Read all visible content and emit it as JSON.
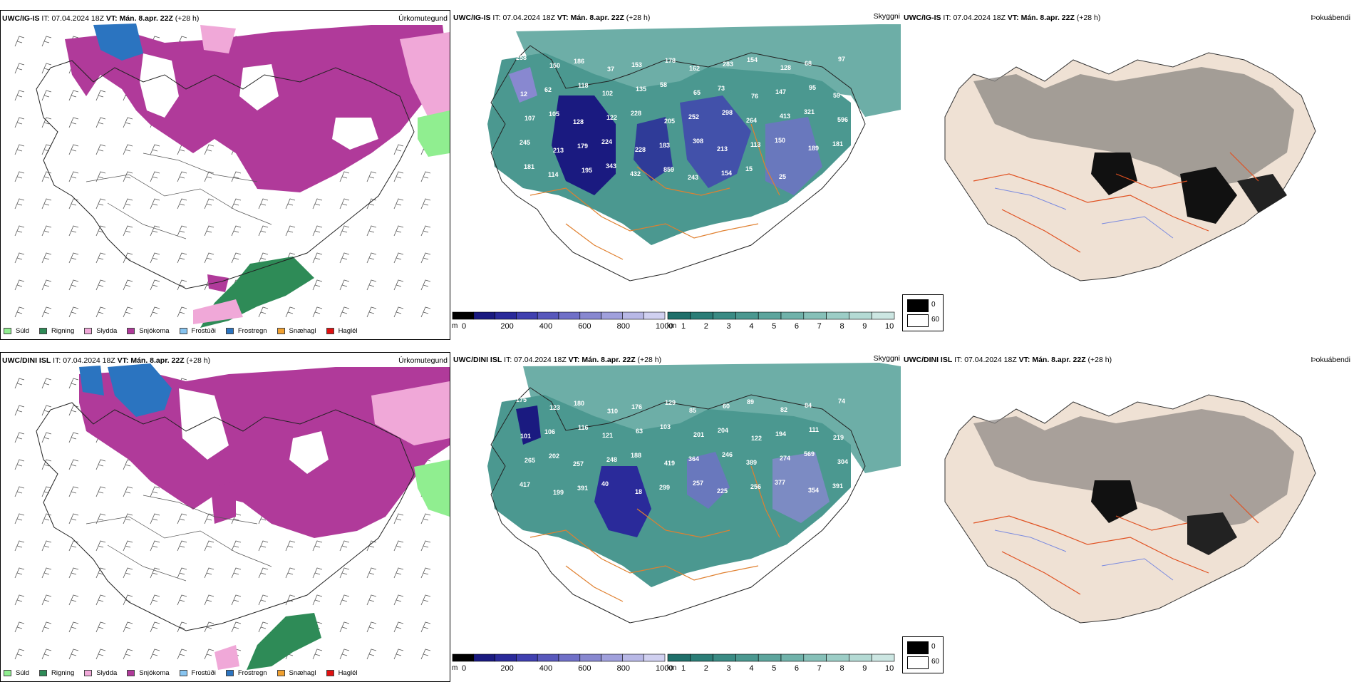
{
  "rows": [
    {
      "model": "UWC/IG-IS",
      "it_label": "IT:",
      "it_value": "07.04.2024 18Z",
      "vt_label": "VT:",
      "vt_value": "Mán. 8.apr. 22Z",
      "lead": "(+28 h)"
    },
    {
      "model": "UWC/DINI ISL",
      "it_label": "IT:",
      "it_value": "07.04.2024 18Z",
      "vt_label": "VT:",
      "vt_value": "Mán. 8.apr. 22Z",
      "lead": "(+28 h)"
    }
  ],
  "panel_titles": {
    "precip_type": "Úrkomutegund",
    "cloud_base": "Skyggni",
    "fog": "Þokuábendi"
  },
  "precip_legend": [
    {
      "label": "Súld",
      "color": "#90ee90"
    },
    {
      "label": "Rigning",
      "color": "#2e8b57"
    },
    {
      "label": "Slydda",
      "color": "#f0a8d8"
    },
    {
      "label": "Snjókoma",
      "color": "#b03a9a"
    },
    {
      "label": "Frostúði",
      "color": "#87c4f0"
    },
    {
      "label": "Frostregn",
      "color": "#2b74c0"
    },
    {
      "label": "Snæhagl",
      "color": "#f0a030"
    },
    {
      "label": "Haglél",
      "color": "#e01010"
    }
  ],
  "cloud_colorbar": {
    "unit": "m",
    "ticks": [
      "0",
      "200",
      "400",
      "600",
      "800",
      "1000"
    ],
    "colors": [
      "#000000",
      "#1a1a80",
      "#2a2a9a",
      "#4040b0",
      "#5858bc",
      "#7070c8",
      "#8888d0",
      "#a0a0dc",
      "#b8b8e6",
      "#d0d0f0"
    ]
  },
  "vis_colorbar": {
    "unit": "km",
    "ticks": [
      "1",
      "2",
      "3",
      "4",
      "5",
      "6",
      "7",
      "8",
      "9",
      "10"
    ],
    "colors": [
      "#1f6f6a",
      "#2b7d77",
      "#3a8b84",
      "#4b9890",
      "#5da59d",
      "#70b2aa",
      "#86c0b8",
      "#9ccdc6",
      "#b4dad4",
      "#cce6e2"
    ]
  },
  "fog_legend": {
    "values": [
      "0",
      "60"
    ],
    "colors": [
      "#000000",
      "#ffffff"
    ]
  },
  "cloud_labels_top": [
    "258",
    "150",
    "186",
    "37",
    "153",
    "178",
    "162",
    "283",
    "154",
    "128",
    "68",
    "97",
    "12",
    "62",
    "118",
    "102",
    "135",
    "58",
    "65",
    "73",
    "76",
    "147",
    "95",
    "59",
    "107",
    "105",
    "128",
    "122",
    "228",
    "205",
    "252",
    "298",
    "264",
    "413",
    "321",
    "596",
    "245",
    "213",
    "179",
    "224",
    "228",
    "183",
    "308",
    "213",
    "113",
    "150",
    "189",
    "181",
    "181",
    "114",
    "195",
    "343",
    "432",
    "859",
    "243",
    "154",
    "15",
    "25"
  ],
  "cloud_labels_bottom": [
    "175",
    "123",
    "180",
    "310",
    "176",
    "129",
    "85",
    "60",
    "89",
    "82",
    "84",
    "74",
    "101",
    "106",
    "116",
    "121",
    "63",
    "103",
    "201",
    "204",
    "122",
    "194",
    "111",
    "219",
    "265",
    "202",
    "257",
    "248",
    "188",
    "419",
    "364",
    "246",
    "389",
    "274",
    "569",
    "304",
    "417",
    "199",
    "391",
    "40",
    "18",
    "299",
    "257",
    "225",
    "256",
    "377",
    "354",
    "391"
  ]
}
